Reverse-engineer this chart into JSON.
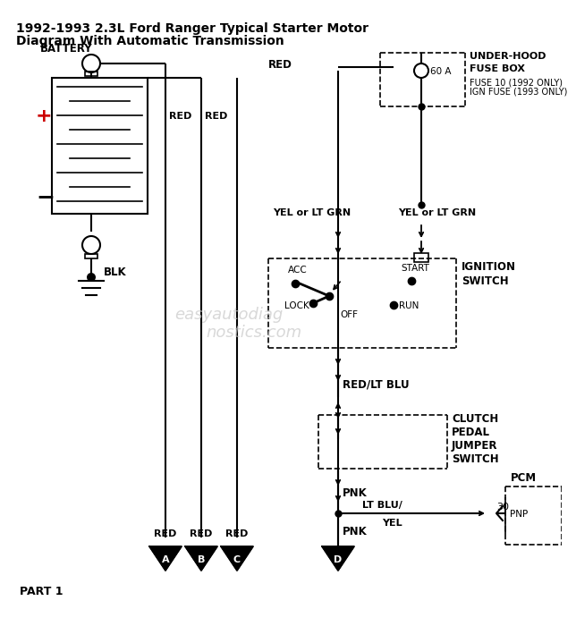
{
  "title_line1": "1992-1993 2.3L Ford Ranger Typical Starter Motor",
  "title_line2": "Diagram With Automatic Transmission",
  "bg_color": "#ffffff",
  "line_color": "#000000",
  "red_color": "#cc0000",
  "watermark": "easyautodiagnostics.com",
  "battery_label": "BATTERY",
  "blk_label": "BLK",
  "red_label": "RED",
  "red2_label": "RED",
  "yel_label_left": "YEL or LT GRN",
  "yel_label_right": "YEL or LT GRN",
  "fuse_label1": "UNDER-HOOD",
  "fuse_label2": "FUSE BOX",
  "fuse_label3": "FUSE 10 (1992 ONLY)",
  "fuse_label4": "IGN FUSE (1993 ONLY)",
  "fuse_60a": "60 A",
  "ign_label1": "IGNITION",
  "ign_label2": "SWITCH",
  "acc_label": "ACC",
  "lock_label": "LOCK",
  "off_label": "OFF",
  "start_label": "START",
  "run_label": "RUN",
  "red_lt_blu": "RED/LT BLU",
  "clutch1": "CLUTCH",
  "clutch2": "PEDAL",
  "clutch3": "JUMPER",
  "clutch4": "SWITCH",
  "pnk_label1": "PNK",
  "pnk_label2": "PNK",
  "lt_blu_yel1": "LT BLU/",
  "lt_blu_yel2": "YEL",
  "pcm_label": "PCM",
  "pnp_label": "PNP",
  "num30": "30",
  "part1": "PART 1",
  "conn_a": "A",
  "conn_b": "B",
  "conn_c": "C",
  "conn_d": "D",
  "red_a": "RED",
  "red_b": "RED",
  "red_c": "RED"
}
